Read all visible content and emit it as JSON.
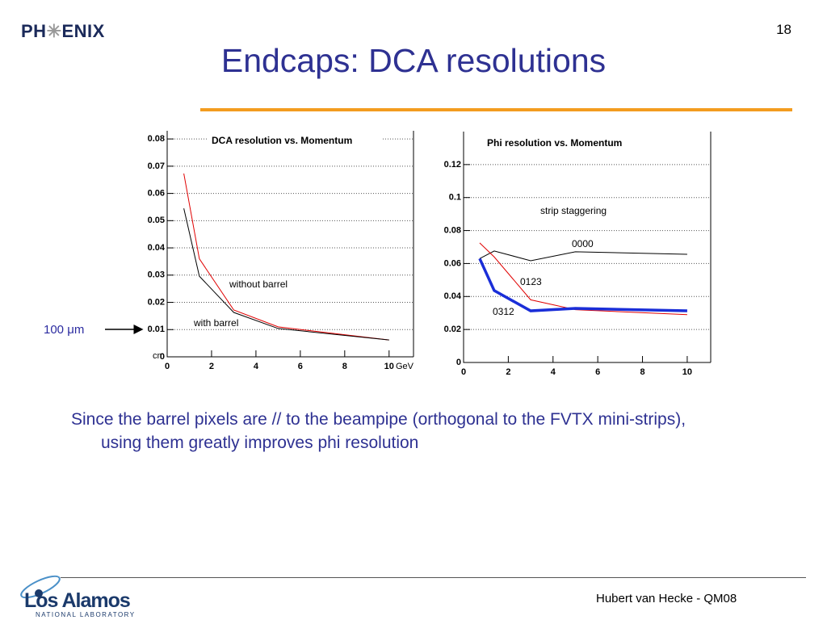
{
  "slide": {
    "page_number": "18",
    "title": "Endcaps: DCA resolutions",
    "logo_left": "PH",
    "logo_right": "ENIX",
    "pointer": "100 μm",
    "body": "Since the barrel pixels are // to the beampipe (orthogonal to the FVTX mini-strips), using them greatly improves phi resolution",
    "footer": "Hubert van Hecke - QM08",
    "lab_name": "Los Alamos",
    "lab_sub": "NATIONAL LABORATORY"
  },
  "chart_data": [
    {
      "type": "line",
      "title": "DCA resolution vs. Momentum",
      "xlabel": "GeV",
      "ylabel": "cm",
      "x": [
        0.75,
        1.45,
        3.0,
        5.0,
        10.0
      ],
      "series": [
        {
          "name": "without barrel",
          "color": "#e00000",
          "values": [
            0.0673,
            0.036,
            0.0172,
            0.011,
            0.0062
          ]
        },
        {
          "name": "with barrel",
          "color": "#000000",
          "values": [
            0.0545,
            0.0296,
            0.0163,
            0.0104,
            0.0062
          ]
        }
      ],
      "xlim": [
        0,
        11.1
      ],
      "xticks": [
        0,
        2,
        4,
        6,
        8,
        10
      ],
      "ylim": [
        0,
        0.083
      ],
      "yticks": [
        0,
        0.01,
        0.02,
        0.03,
        0.04,
        0.05,
        0.06,
        0.07,
        0.08
      ],
      "grid": true
    },
    {
      "type": "line",
      "title": "Phi resolution vs. Momentum",
      "annotation": "strip staggering",
      "x": [
        0.72,
        1.37,
        3.0,
        5.0,
        10.0
      ],
      "series": [
        {
          "name": "0000",
          "color": "#000000",
          "values": [
            0.063,
            0.0676,
            0.0617,
            0.0671,
            0.0656
          ]
        },
        {
          "name": "0123",
          "color": "#e00000",
          "values": [
            0.0725,
            0.064,
            0.038,
            0.032,
            0.029
          ]
        },
        {
          "name": "0312",
          "color": "#1a2ed8",
          "values": [
            0.063,
            0.0436,
            0.0313,
            0.0328,
            0.0313
          ]
        }
      ],
      "xlim": [
        0,
        11.05
      ],
      "xticks": [
        0,
        2,
        4,
        6,
        8,
        10
      ],
      "ylim": [
        0,
        0.14
      ],
      "yticks": [
        0,
        0.02,
        0.04,
        0.06,
        0.08,
        0.1,
        0.12
      ],
      "grid": true
    }
  ]
}
